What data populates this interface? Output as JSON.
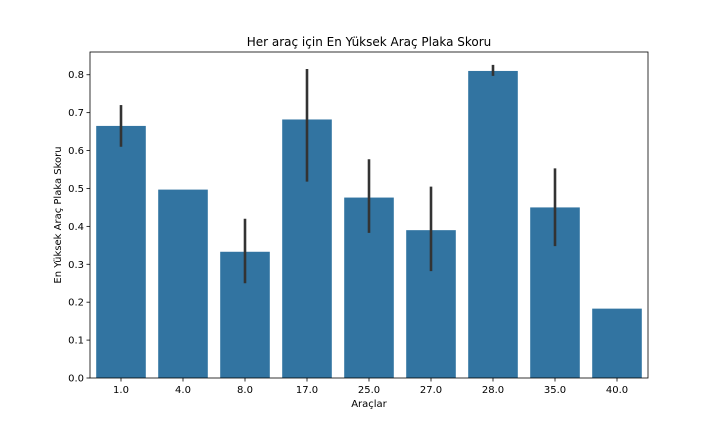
{
  "chart_data": {
    "type": "bar",
    "title": "Her araç için En Yüksek Araç Plaka Skoru",
    "xlabel": "Araçlar",
    "ylabel": "En Yüksek Araç Plaka Skoru",
    "categories": [
      "1.0",
      "4.0",
      "8.0",
      "17.0",
      "25.0",
      "27.0",
      "28.0",
      "35.0",
      "40.0"
    ],
    "values": [
      0.665,
      0.497,
      0.333,
      0.682,
      0.476,
      0.39,
      0.81,
      0.45,
      0.183
    ],
    "error_bars": [
      [
        0.61,
        0.72
      ],
      null,
      [
        0.25,
        0.42
      ],
      [
        0.518,
        0.815
      ],
      [
        0.383,
        0.577
      ],
      [
        0.282,
        0.505
      ],
      [
        0.797,
        0.826
      ],
      [
        0.348,
        0.553
      ],
      null
    ],
    "ylim": [
      0,
      0.86
    ],
    "yticks": [
      "0.0",
      "0.1",
      "0.2",
      "0.3",
      "0.4",
      "0.5",
      "0.6",
      "0.7",
      "0.8"
    ],
    "bar_color": "#3274a1",
    "error_color": "#333333",
    "grid": false,
    "legend": false
  }
}
